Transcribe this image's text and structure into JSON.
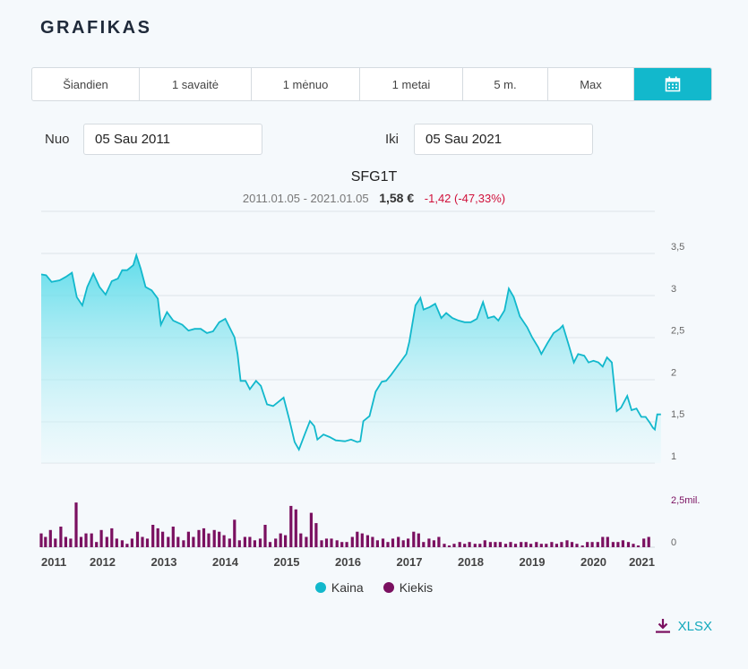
{
  "header": {
    "title": "GRAFIKAS"
  },
  "tabs": [
    {
      "label": "Šiandien"
    },
    {
      "label": "1 savaitė"
    },
    {
      "label": "1 mėnuo"
    },
    {
      "label": "1 metai"
    },
    {
      "label": "5 m."
    },
    {
      "label": "Max"
    },
    {
      "label": "",
      "icon": "calendar-icon",
      "active": true
    }
  ],
  "range": {
    "from_label": "Nuo",
    "from_value": "05 Sau 2011",
    "to_label": "Iki",
    "to_value": "05 Sau 2021"
  },
  "summary": {
    "ticker": "SFG1T",
    "period": "2011.01.05 - 2021.01.05",
    "price": "1,58 €",
    "change": "-1,42 (-47,33%)"
  },
  "legend": [
    {
      "label": "Kaina",
      "color": "#12b8cc"
    },
    {
      "label": "Kiekis",
      "color": "#7a1060"
    }
  ],
  "download": {
    "label": "XLSX",
    "icon": "download-icon"
  },
  "chart_data": {
    "type": "area",
    "x_range": [
      2011.0,
      2021.0
    ],
    "x_ticks": [
      "2011",
      "2012",
      "2013",
      "2014",
      "2015",
      "2016",
      "2017",
      "2018",
      "2019",
      "2020",
      "2021"
    ],
    "price": {
      "name": "Kaina",
      "color": "#12b8cc",
      "y_range": [
        1.0,
        3.5
      ],
      "y_ticks": [
        "1",
        "1,5",
        "2",
        "2,5",
        "3",
        "3,5"
      ],
      "points": [
        [
          2011.0,
          3.25
        ],
        [
          2011.08,
          3.24
        ],
        [
          2011.17,
          3.16
        ],
        [
          2011.3,
          3.18
        ],
        [
          2011.4,
          3.22
        ],
        [
          2011.5,
          3.27
        ],
        [
          2011.58,
          2.98
        ],
        [
          2011.67,
          2.88
        ],
        [
          2011.75,
          3.1
        ],
        [
          2011.85,
          3.26
        ],
        [
          2011.95,
          3.1
        ],
        [
          2012.05,
          3.01
        ],
        [
          2012.15,
          3.17
        ],
        [
          2012.25,
          3.2
        ],
        [
          2012.32,
          3.3
        ],
        [
          2012.4,
          3.3
        ],
        [
          2012.5,
          3.36
        ],
        [
          2012.55,
          3.48
        ],
        [
          2012.62,
          3.32
        ],
        [
          2012.7,
          3.1
        ],
        [
          2012.8,
          3.06
        ],
        [
          2012.9,
          2.96
        ],
        [
          2012.95,
          2.65
        ],
        [
          2013.05,
          2.8
        ],
        [
          2013.15,
          2.7
        ],
        [
          2013.3,
          2.65
        ],
        [
          2013.4,
          2.58
        ],
        [
          2013.5,
          2.6
        ],
        [
          2013.6,
          2.6
        ],
        [
          2013.7,
          2.55
        ],
        [
          2013.8,
          2.57
        ],
        [
          2013.9,
          2.68
        ],
        [
          2014.0,
          2.72
        ],
        [
          2014.15,
          2.5
        ],
        [
          2014.2,
          2.3
        ],
        [
          2014.25,
          1.98
        ],
        [
          2014.33,
          1.98
        ],
        [
          2014.4,
          1.88
        ],
        [
          2014.5,
          1.98
        ],
        [
          2014.58,
          1.92
        ],
        [
          2014.68,
          1.7
        ],
        [
          2014.78,
          1.68
        ],
        [
          2014.85,
          1.72
        ],
        [
          2014.95,
          1.78
        ],
        [
          2015.05,
          1.5
        ],
        [
          2015.13,
          1.25
        ],
        [
          2015.2,
          1.16
        ],
        [
          2015.3,
          1.35
        ],
        [
          2015.38,
          1.5
        ],
        [
          2015.45,
          1.44
        ],
        [
          2015.5,
          1.28
        ],
        [
          2015.6,
          1.34
        ],
        [
          2015.7,
          1.31
        ],
        [
          2015.8,
          1.27
        ],
        [
          2015.95,
          1.26
        ],
        [
          2016.05,
          1.28
        ],
        [
          2016.15,
          1.25
        ],
        [
          2016.2,
          1.26
        ],
        [
          2016.25,
          1.5
        ],
        [
          2016.35,
          1.56
        ],
        [
          2016.45,
          1.85
        ],
        [
          2016.55,
          1.97
        ],
        [
          2016.62,
          1.98
        ],
        [
          2016.7,
          2.05
        ],
        [
          2016.8,
          2.15
        ],
        [
          2016.95,
          2.3
        ],
        [
          2017.0,
          2.45
        ],
        [
          2017.1,
          2.88
        ],
        [
          2017.18,
          2.97
        ],
        [
          2017.23,
          2.83
        ],
        [
          2017.33,
          2.86
        ],
        [
          2017.42,
          2.9
        ],
        [
          2017.52,
          2.73
        ],
        [
          2017.6,
          2.79
        ],
        [
          2017.7,
          2.73
        ],
        [
          2017.8,
          2.7
        ],
        [
          2017.9,
          2.68
        ],
        [
          2018.0,
          2.68
        ],
        [
          2018.1,
          2.72
        ],
        [
          2018.2,
          2.92
        ],
        [
          2018.28,
          2.73
        ],
        [
          2018.38,
          2.75
        ],
        [
          2018.45,
          2.7
        ],
        [
          2018.55,
          2.82
        ],
        [
          2018.62,
          3.08
        ],
        [
          2018.7,
          2.98
        ],
        [
          2018.8,
          2.75
        ],
        [
          2018.92,
          2.62
        ],
        [
          2019.0,
          2.5
        ],
        [
          2019.1,
          2.38
        ],
        [
          2019.15,
          2.3
        ],
        [
          2019.25,
          2.43
        ],
        [
          2019.35,
          2.55
        ],
        [
          2019.45,
          2.6
        ],
        [
          2019.5,
          2.64
        ],
        [
          2019.6,
          2.4
        ],
        [
          2019.68,
          2.2
        ],
        [
          2019.75,
          2.3
        ],
        [
          2019.85,
          2.28
        ],
        [
          2019.92,
          2.2
        ],
        [
          2020.0,
          2.22
        ],
        [
          2020.08,
          2.2
        ],
        [
          2020.15,
          2.15
        ],
        [
          2020.22,
          2.26
        ],
        [
          2020.3,
          2.2
        ],
        [
          2020.38,
          1.62
        ],
        [
          2020.45,
          1.66
        ],
        [
          2020.55,
          1.8
        ],
        [
          2020.62,
          1.63
        ],
        [
          2020.7,
          1.65
        ],
        [
          2020.78,
          1.55
        ],
        [
          2020.85,
          1.55
        ],
        [
          2020.92,
          1.48
        ],
        [
          2020.97,
          1.42
        ],
        [
          2021.0,
          1.4
        ],
        [
          2021.04,
          1.58
        ],
        [
          2021.1,
          1.58
        ]
      ]
    },
    "volume": {
      "name": "Kiekis",
      "color": "#7a1060",
      "y_range": [
        0,
        2.5
      ],
      "y_ticks": [
        "0",
        "2,5mil."
      ],
      "bars": [
        [
          2011.0,
          0.8
        ],
        [
          2011.07,
          0.6
        ],
        [
          2011.15,
          1.0
        ],
        [
          2011.23,
          0.5
        ],
        [
          2011.32,
          1.2
        ],
        [
          2011.4,
          0.6
        ],
        [
          2011.48,
          0.5
        ],
        [
          2011.57,
          2.6
        ],
        [
          2011.65,
          0.6
        ],
        [
          2011.73,
          0.8
        ],
        [
          2011.82,
          0.8
        ],
        [
          2011.9,
          0.3
        ],
        [
          2011.98,
          1.0
        ],
        [
          2012.07,
          0.6
        ],
        [
          2012.15,
          1.1
        ],
        [
          2012.23,
          0.5
        ],
        [
          2012.32,
          0.4
        ],
        [
          2012.4,
          0.2
        ],
        [
          2012.48,
          0.5
        ],
        [
          2012.57,
          0.9
        ],
        [
          2012.65,
          0.6
        ],
        [
          2012.73,
          0.5
        ],
        [
          2012.82,
          1.3
        ],
        [
          2012.9,
          1.1
        ],
        [
          2012.98,
          0.9
        ],
        [
          2013.07,
          0.6
        ],
        [
          2013.15,
          1.2
        ],
        [
          2013.23,
          0.6
        ],
        [
          2013.32,
          0.4
        ],
        [
          2013.4,
          0.9
        ],
        [
          2013.48,
          0.6
        ],
        [
          2013.57,
          1.0
        ],
        [
          2013.65,
          1.1
        ],
        [
          2013.73,
          0.8
        ],
        [
          2013.82,
          1.0
        ],
        [
          2013.9,
          0.9
        ],
        [
          2013.98,
          0.7
        ],
        [
          2014.07,
          0.5
        ],
        [
          2014.15,
          1.6
        ],
        [
          2014.23,
          0.4
        ],
        [
          2014.32,
          0.6
        ],
        [
          2014.4,
          0.6
        ],
        [
          2014.48,
          0.4
        ],
        [
          2014.57,
          0.5
        ],
        [
          2014.65,
          1.3
        ],
        [
          2014.73,
          0.3
        ],
        [
          2014.82,
          0.5
        ],
        [
          2014.9,
          0.8
        ],
        [
          2014.98,
          0.7
        ],
        [
          2015.07,
          2.4
        ],
        [
          2015.15,
          2.2
        ],
        [
          2015.23,
          0.8
        ],
        [
          2015.32,
          0.6
        ],
        [
          2015.4,
          2.0
        ],
        [
          2015.48,
          1.4
        ],
        [
          2015.57,
          0.4
        ],
        [
          2015.65,
          0.5
        ],
        [
          2015.73,
          0.5
        ],
        [
          2015.82,
          0.4
        ],
        [
          2015.9,
          0.3
        ],
        [
          2015.98,
          0.3
        ],
        [
          2016.07,
          0.6
        ],
        [
          2016.15,
          0.9
        ],
        [
          2016.23,
          0.8
        ],
        [
          2016.32,
          0.7
        ],
        [
          2016.4,
          0.6
        ],
        [
          2016.48,
          0.4
        ],
        [
          2016.57,
          0.5
        ],
        [
          2016.65,
          0.3
        ],
        [
          2016.73,
          0.5
        ],
        [
          2016.82,
          0.6
        ],
        [
          2016.9,
          0.4
        ],
        [
          2016.98,
          0.5
        ],
        [
          2017.07,
          0.9
        ],
        [
          2017.15,
          0.8
        ],
        [
          2017.23,
          0.3
        ],
        [
          2017.32,
          0.5
        ],
        [
          2017.4,
          0.4
        ],
        [
          2017.48,
          0.6
        ],
        [
          2017.57,
          0.2
        ],
        [
          2017.65,
          0.1
        ],
        [
          2017.73,
          0.2
        ],
        [
          2017.82,
          0.3
        ],
        [
          2017.9,
          0.2
        ],
        [
          2017.98,
          0.3
        ],
        [
          2018.07,
          0.2
        ],
        [
          2018.15,
          0.2
        ],
        [
          2018.23,
          0.4
        ],
        [
          2018.32,
          0.3
        ],
        [
          2018.4,
          0.3
        ],
        [
          2018.48,
          0.3
        ],
        [
          2018.57,
          0.2
        ],
        [
          2018.65,
          0.3
        ],
        [
          2018.73,
          0.2
        ],
        [
          2018.82,
          0.3
        ],
        [
          2018.9,
          0.3
        ],
        [
          2018.98,
          0.2
        ],
        [
          2019.07,
          0.3
        ],
        [
          2019.15,
          0.2
        ],
        [
          2019.23,
          0.2
        ],
        [
          2019.32,
          0.3
        ],
        [
          2019.4,
          0.2
        ],
        [
          2019.48,
          0.3
        ],
        [
          2019.57,
          0.4
        ],
        [
          2019.65,
          0.3
        ],
        [
          2019.73,
          0.2
        ],
        [
          2019.82,
          0.1
        ],
        [
          2019.9,
          0.3
        ],
        [
          2019.98,
          0.3
        ],
        [
          2020.07,
          0.3
        ],
        [
          2020.15,
          0.6
        ],
        [
          2020.23,
          0.6
        ],
        [
          2020.32,
          0.3
        ],
        [
          2020.4,
          0.3
        ],
        [
          2020.48,
          0.4
        ],
        [
          2020.57,
          0.3
        ],
        [
          2020.65,
          0.2
        ],
        [
          2020.73,
          0.1
        ],
        [
          2020.82,
          0.5
        ],
        [
          2020.9,
          0.6
        ]
      ]
    }
  }
}
